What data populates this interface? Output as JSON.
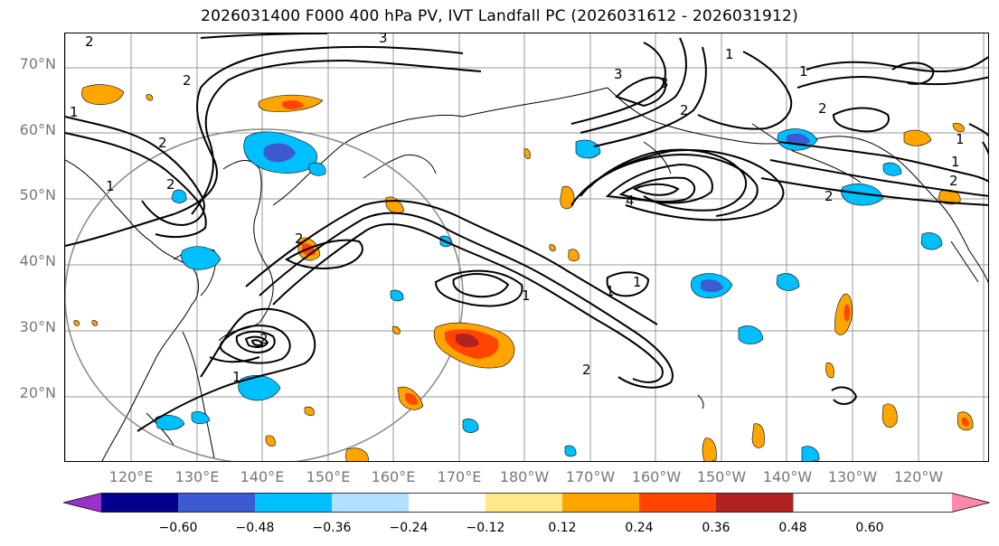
{
  "title": "2026031400 F000 400 hPa PV, IVT Landfall PC (2026031612 - 2026031912)",
  "lat_labels": [
    "70°N",
    "60°N",
    "50°N",
    "40°N",
    "30°N",
    "20°N"
  ],
  "lon_labels": [
    "120°E",
    "130°E",
    "140°E",
    "150°E",
    "160°E",
    "170°E",
    "180°W",
    "170°W",
    "160°W",
    "150°W",
    "140°W",
    "130°W",
    "120°W"
  ],
  "colorbar": {
    "ticks": [
      "−0.60",
      "−0.48",
      "−0.36",
      "−0.24",
      "−0.12",
      "0.12",
      "0.24",
      "0.36",
      "0.48",
      "0.60"
    ],
    "colors": [
      "#9932cc",
      "#00008b",
      "#3c5bd0",
      "#00bfff",
      "#b0e0ff",
      "#ffffff",
      "#ffe98a",
      "#ffa500",
      "#ff4500",
      "#b22222",
      "#ff88aa"
    ]
  },
  "contour_labels": [
    "2",
    "3",
    "2",
    "1",
    "2",
    "2",
    "1",
    "2",
    "3",
    "4",
    "1",
    "2",
    "3",
    "1",
    "2",
    "2",
    "1",
    "1",
    "2",
    "1",
    "1",
    "1",
    "2",
    "1",
    "2"
  ]
}
